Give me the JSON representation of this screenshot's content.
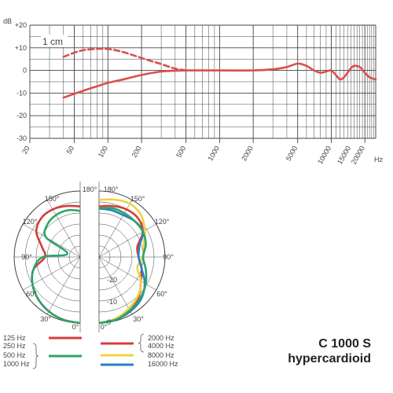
{
  "product": {
    "model": "C 1000 S",
    "pattern": "hypercardioid"
  },
  "chart_data": [
    {
      "type": "line",
      "title": "",
      "xlabel": "Hz",
      "ylabel": "dB",
      "x_scale": "log",
      "xlim": [
        20,
        25000
      ],
      "ylim": [
        -30,
        20
      ],
      "x_ticks": [
        "20",
        "50",
        "100",
        "200",
        "500",
        "1000",
        "2000",
        "5000",
        "10000",
        "15000",
        "20000"
      ],
      "x_unit_label": "Hz",
      "y_ticks": [
        "+20",
        "+10",
        "0",
        "-10",
        "-20",
        "-30"
      ],
      "y_unit_label": "dB",
      "annotation": "1 cm",
      "grid": true,
      "colors": {
        "curve": "#d94f4f",
        "grid": "#444444"
      },
      "series": [
        {
          "name": "",
          "style": "dashed",
          "x": [
            40,
            55,
            70,
            90,
            110,
            140,
            200,
            300,
            400,
            500
          ],
          "y": [
            6,
            8.5,
            9.3,
            9.6,
            9.2,
            8,
            5.5,
            2.8,
            0.8,
            0
          ]
        },
        {
          "name": "",
          "style": "solid",
          "x": [
            40,
            60,
            80,
            100,
            150,
            200,
            300,
            500,
            1000,
            2000,
            3000,
            4000,
            5000,
            6000,
            7000,
            8000,
            9000,
            10000,
            11000,
            12000,
            13000,
            14000,
            15000,
            16000,
            18000,
            20000,
            22000,
            25000
          ],
          "y": [
            -12,
            -9,
            -7,
            -5.5,
            -3.5,
            -2,
            -0.5,
            0,
            0,
            0,
            0.5,
            1.5,
            3,
            2,
            0,
            -1,
            -0.5,
            0,
            -2,
            -4,
            -3,
            -1,
            1,
            2,
            1.5,
            -1,
            -3,
            -4
          ]
        }
      ]
    },
    {
      "type": "polar",
      "title": "",
      "angle_labels": [
        "180°",
        "150°",
        "120°",
        "90°",
        "60°",
        "30°",
        "0°"
      ],
      "radial_labels": [
        "-20",
        "-10",
        "0"
      ],
      "rlim": [
        -30,
        0
      ],
      "grid": true,
      "series": [
        {
          "name": "125 Hz",
          "color": "#d63c3c"
        },
        {
          "name": "250 Hz",
          "color": "#2aa56a"
        },
        {
          "name": "500 Hz",
          "color": "#2aa56a"
        },
        {
          "name": "1000 Hz",
          "color": "#2aa56a"
        },
        {
          "name": "2000 Hz",
          "color": "#d63c3c"
        },
        {
          "name": "4000 Hz",
          "color": "#d63c3c"
        },
        {
          "name": "8000 Hz",
          "color": "#f0d23c"
        },
        {
          "name": "16000 Hz",
          "color": "#2a7fc0"
        }
      ],
      "left_half": [
        {
          "color": "#d63c3c",
          "angles": [
            0,
            15,
            30,
            45,
            60,
            75,
            90,
            105,
            120,
            135,
            150,
            165,
            180
          ],
          "levels": [
            0,
            -0.5,
            -1.5,
            -3,
            -5,
            -8,
            -14,
            -12,
            -7,
            -5,
            -5,
            -6,
            -7
          ]
        },
        {
          "color": "#2aa56a",
          "angles": [
            0,
            15,
            30,
            45,
            60,
            75,
            90,
            105,
            120,
            135,
            150,
            165,
            180
          ],
          "levels": [
            0,
            -0.5,
            -1.5,
            -3,
            -5,
            -8,
            -13,
            -24,
            -12,
            -9,
            -8,
            -8,
            -9
          ]
        }
      ],
      "right_half": [
        {
          "color": "#d63c3c",
          "angles": [
            0,
            15,
            30,
            45,
            60,
            75,
            90,
            105,
            120,
            135,
            150,
            165,
            180
          ],
          "levels": [
            0,
            -0.5,
            -2,
            -4.5,
            -8,
            -10,
            -12,
            -12,
            -7,
            -5,
            -5,
            -6,
            -7
          ]
        },
        {
          "color": "#f0d23c",
          "angles": [
            0,
            15,
            30,
            45,
            60,
            75,
            90,
            105,
            120,
            135,
            150,
            165,
            180
          ],
          "levels": [
            0,
            -1,
            -3,
            -5,
            -8,
            -12,
            -10,
            -9,
            -6,
            -3,
            -2,
            -3,
            -4
          ]
        },
        {
          "color": "#2a7fc0",
          "angles": [
            0,
            15,
            30,
            45,
            60,
            75,
            90,
            105,
            120,
            135,
            150,
            165,
            180
          ],
          "levels": [
            0,
            -0.5,
            -1.5,
            -3,
            -6,
            -10,
            -12,
            -11,
            -7,
            -7,
            -8,
            -8,
            -8
          ]
        },
        {
          "color": "#2aa56a",
          "angles": [
            0,
            15,
            30,
            45,
            60,
            75,
            90,
            105,
            120,
            135,
            150,
            165,
            180
          ],
          "levels": [
            0,
            -0.5,
            -2,
            -3.5,
            -5.5,
            -8,
            -10,
            -8,
            -7,
            -7,
            -7,
            -7,
            -8
          ]
        }
      ]
    }
  ]
}
